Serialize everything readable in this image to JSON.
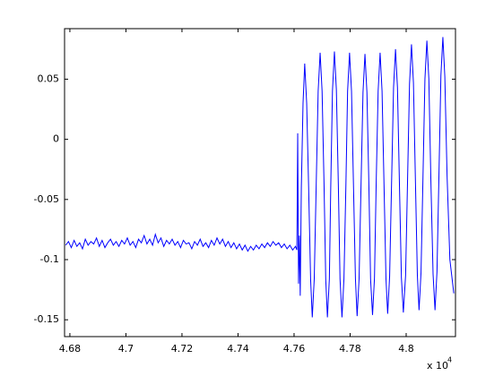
{
  "chart_data": {
    "type": "line",
    "x": [
      46785,
      46795,
      46805,
      46815,
      46825,
      46835,
      46845,
      46855,
      46865,
      46875,
      46885,
      46895,
      46905,
      46915,
      46925,
      46935,
      46945,
      46955,
      46965,
      46975,
      46985,
      46995,
      47005,
      47015,
      47025,
      47035,
      47045,
      47055,
      47065,
      47075,
      47085,
      47095,
      47105,
      47115,
      47125,
      47135,
      47145,
      47155,
      47165,
      47175,
      47185,
      47195,
      47205,
      47215,
      47225,
      47235,
      47245,
      47255,
      47265,
      47275,
      47285,
      47295,
      47305,
      47315,
      47325,
      47335,
      47345,
      47355,
      47365,
      47375,
      47385,
      47395,
      47405,
      47415,
      47425,
      47435,
      47445,
      47455,
      47465,
      47475,
      47485,
      47495,
      47505,
      47515,
      47525,
      47535,
      47545,
      47555,
      47565,
      47575,
      47585,
      47595,
      47605,
      47610,
      47613,
      47616,
      47619,
      47622,
      47626,
      47632,
      47638,
      47645,
      47652,
      47659,
      47665,
      47672,
      47679,
      47686,
      47693,
      47700,
      47707,
      47713,
      47719,
      47726,
      47731,
      47737,
      47744,
      47751,
      47758,
      47764,
      47771,
      47778,
      47785,
      47791,
      47798,
      47805,
      47812,
      47819,
      47825,
      47832,
      47839,
      47846,
      47853,
      47860,
      47867,
      47873,
      47880,
      47887,
      47893,
      47900,
      47907,
      47914,
      47921,
      47928,
      47934,
      47941,
      47948,
      47955,
      47962,
      47969,
      47976,
      47983,
      47990,
      47998,
      48005,
      48012,
      48019,
      48026,
      48033,
      48040,
      48046,
      48053,
      48060,
      48067,
      48074,
      48081,
      48088,
      48096,
      48103,
      48110,
      48117,
      48124,
      48131,
      48138,
      48146,
      48156,
      48170
    ],
    "series": [
      {
        "color": "#0000ff",
        "values": [
          -0.088,
          -0.085,
          -0.09,
          -0.084,
          -0.089,
          -0.086,
          -0.091,
          -0.083,
          -0.088,
          -0.085,
          -0.087,
          -0.082,
          -0.089,
          -0.084,
          -0.09,
          -0.086,
          -0.083,
          -0.088,
          -0.085,
          -0.089,
          -0.084,
          -0.087,
          -0.082,
          -0.088,
          -0.085,
          -0.09,
          -0.083,
          -0.086,
          -0.08,
          -0.087,
          -0.083,
          -0.088,
          -0.079,
          -0.086,
          -0.082,
          -0.089,
          -0.084,
          -0.087,
          -0.083,
          -0.088,
          -0.085,
          -0.09,
          -0.084,
          -0.087,
          -0.086,
          -0.091,
          -0.085,
          -0.088,
          -0.083,
          -0.089,
          -0.086,
          -0.09,
          -0.084,
          -0.088,
          -0.082,
          -0.087,
          -0.083,
          -0.089,
          -0.085,
          -0.09,
          -0.086,
          -0.091,
          -0.087,
          -0.092,
          -0.088,
          -0.093,
          -0.089,
          -0.092,
          -0.088,
          -0.091,
          -0.087,
          -0.09,
          -0.086,
          -0.089,
          -0.085,
          -0.088,
          -0.086,
          -0.09,
          -0.087,
          -0.091,
          -0.088,
          -0.092,
          -0.089,
          -0.092,
          0.005,
          -0.12,
          -0.08,
          -0.13,
          -0.04,
          0.03,
          0.063,
          0.03,
          -0.04,
          -0.116,
          -0.148,
          -0.116,
          -0.038,
          0.04,
          0.072,
          0.04,
          -0.038,
          -0.116,
          -0.148,
          -0.116,
          -0.038,
          0.04,
          0.073,
          0.041,
          -0.038,
          -0.116,
          -0.148,
          -0.116,
          -0.038,
          0.04,
          0.072,
          0.04,
          -0.038,
          -0.116,
          -0.147,
          -0.116,
          -0.038,
          0.039,
          0.071,
          0.039,
          -0.038,
          -0.116,
          -0.146,
          -0.115,
          -0.037,
          0.04,
          0.072,
          0.04,
          -0.038,
          -0.116,
          -0.145,
          -0.114,
          -0.036,
          0.043,
          0.075,
          0.043,
          -0.037,
          -0.115,
          -0.144,
          -0.113,
          -0.034,
          0.046,
          0.079,
          0.047,
          -0.034,
          -0.113,
          -0.142,
          -0.111,
          -0.032,
          0.05,
          0.082,
          0.05,
          -0.032,
          -0.112,
          -0.142,
          -0.11,
          -0.03,
          0.053,
          0.085,
          0.052,
          -0.03,
          -0.1,
          -0.128
        ]
      }
    ],
    "xlim": [
      46781,
      48176
    ],
    "ylim": [
      -0.164,
      0.092
    ],
    "xticks": [
      {
        "value": 46800,
        "label": "4.68"
      },
      {
        "value": 47000,
        "label": "4.7"
      },
      {
        "value": 47200,
        "label": "4.72"
      },
      {
        "value": 47400,
        "label": "4.74"
      },
      {
        "value": 47600,
        "label": "4.76"
      },
      {
        "value": 47800,
        "label": "4.78"
      },
      {
        "value": 48000,
        "label": "4.8"
      }
    ],
    "yticks": [
      -0.15,
      -0.1,
      -0.05,
      0,
      0.05
    ],
    "x_multiplier": {
      "base": "x 10",
      "exponent": "4"
    },
    "grid": false
  }
}
